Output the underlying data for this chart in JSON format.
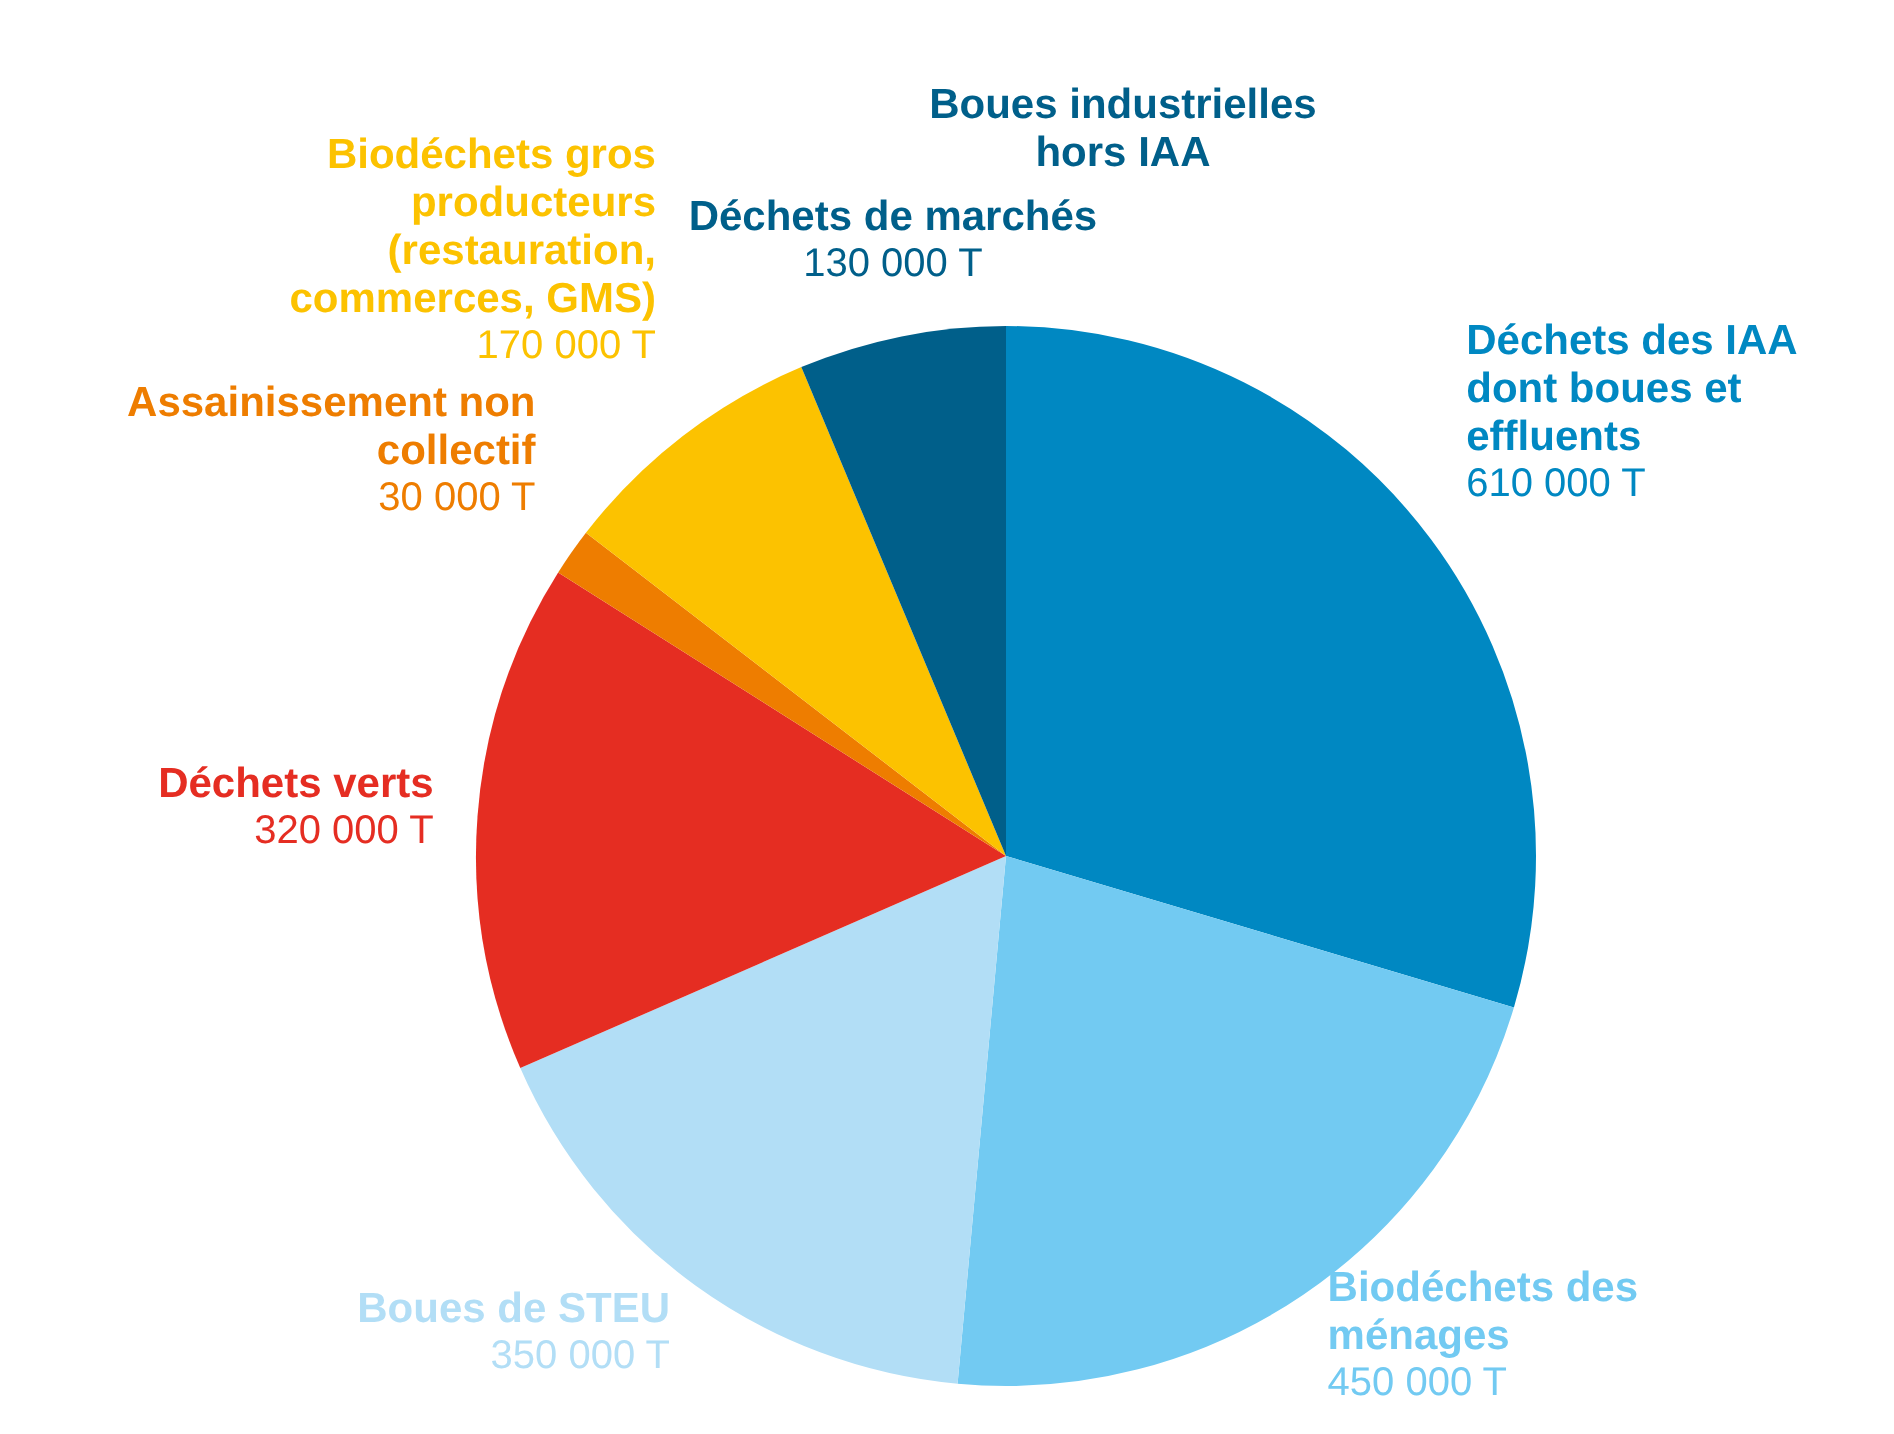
{
  "chart_data": {
    "type": "pie",
    "categories": [
      "Déchets des IAA dont boues et effluents",
      "Biodéchets des ménages",
      "Boues de STEU",
      "Déchets verts",
      "Assainissement non collectif",
      "Biodéchets gros producteurs (restauration, commerces, GMS)",
      "Déchets de marchés"
    ],
    "values": [
      610000,
      450000,
      350000,
      320000,
      30000,
      170000,
      130000
    ],
    "value_labels": [
      "610 000 T",
      "450 000 T",
      "350 000 T",
      "320 000 T",
      "30 000 T",
      "170 000 T",
      "130 000 T"
    ],
    "colors": [
      "#0088c2",
      "#72caf2",
      "#b2def6",
      "#e52d22",
      "#ee7d00",
      "#fcc200",
      "#005f8a"
    ],
    "annotations": [
      "Boues industrielles hors IAA"
    ],
    "legend": false
  }
}
